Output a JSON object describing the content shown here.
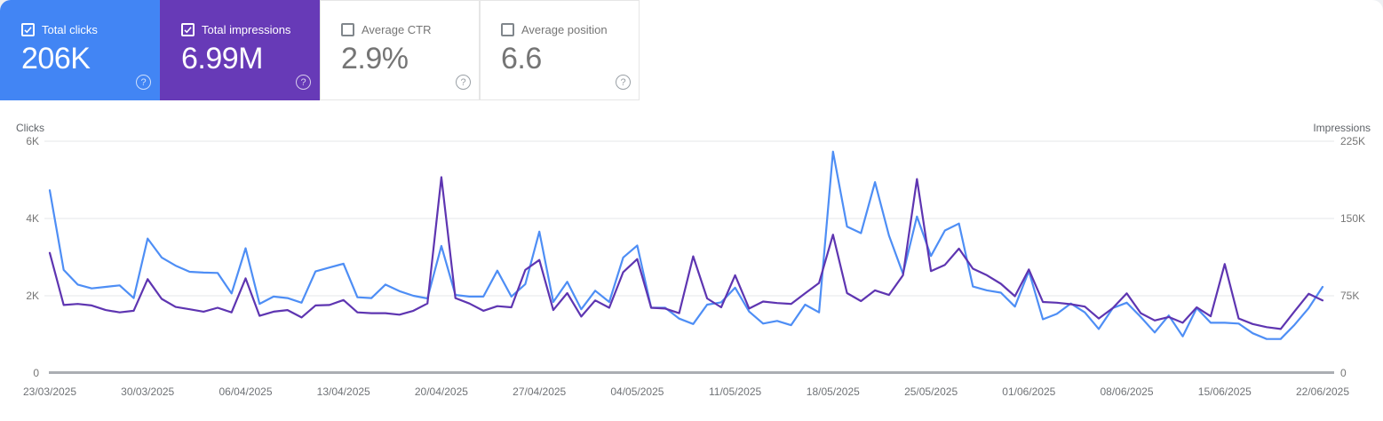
{
  "cards": [
    {
      "id": "total-clicks",
      "label": "Total clicks",
      "value": "206K",
      "checked": true,
      "bg": "#4285f4"
    },
    {
      "id": "total-impressions",
      "label": "Total impressions",
      "value": "6.99M",
      "checked": true,
      "bg": "#673ab7"
    },
    {
      "id": "average-ctr",
      "label": "Average CTR",
      "value": "2.9%",
      "checked": false,
      "bg": "#ffffff"
    },
    {
      "id": "average-position",
      "label": "Average position",
      "value": "6.6",
      "checked": false,
      "bg": "#ffffff"
    }
  ],
  "help_icon_glyph": "?",
  "chart_data": {
    "type": "line",
    "frequency": "daily",
    "x_start_date": "23/03/2025",
    "x_end_date": "22/06/2025",
    "x_tick_labels": [
      "23/03/2025",
      "30/03/2025",
      "06/04/2025",
      "13/04/2025",
      "20/04/2025",
      "27/04/2025",
      "04/05/2025",
      "11/05/2025",
      "18/05/2025",
      "25/05/2025",
      "01/06/2025",
      "08/06/2025",
      "15/06/2025",
      "22/06/2025"
    ],
    "left_axis": {
      "title": "Clicks",
      "ticks": [
        "6K",
        "4K",
        "2K",
        "0"
      ],
      "max": 6000,
      "min": 0
    },
    "right_axis": {
      "title": "Impressions",
      "ticks": [
        "225K",
        "150K",
        "75K",
        "0"
      ],
      "max": 225000,
      "min": 0
    },
    "grid": true,
    "legend": "none",
    "series": [
      {
        "name": "Clicks",
        "axis": "left",
        "color": "#4e8ef5",
        "values": [
          4730,
          2670,
          2290,
          2190,
          2230,
          2270,
          1940,
          3480,
          2990,
          2780,
          2620,
          2600,
          2590,
          2060,
          3230,
          1790,
          1980,
          1940,
          1820,
          2630,
          2730,
          2830,
          1960,
          1940,
          2290,
          2120,
          2000,
          1930,
          3290,
          2020,
          1980,
          1980,
          2650,
          1980,
          2300,
          3660,
          1840,
          2360,
          1650,
          2130,
          1840,
          2990,
          3300,
          1690,
          1690,
          1410,
          1270,
          1770,
          1830,
          2210,
          1590,
          1280,
          1350,
          1240,
          1770,
          1570,
          5730,
          3790,
          3620,
          4940,
          3560,
          2570,
          4050,
          3030,
          3690,
          3870,
          2240,
          2140,
          2080,
          1720,
          2640,
          1390,
          1530,
          1800,
          1570,
          1140,
          1680,
          1820,
          1450,
          1050,
          1490,
          950,
          1680,
          1300,
          1300,
          1280,
          1030,
          880,
          880,
          1250,
          1680,
          2230
        ]
      },
      {
        "name": "Impressions",
        "axis": "right",
        "color": "#5e35b1",
        "values": [
          116600,
          66000,
          67100,
          65600,
          61100,
          58900,
          60400,
          91100,
          72000,
          64100,
          61900,
          59600,
          63400,
          58900,
          91900,
          55500,
          59600,
          61100,
          54000,
          65600,
          66000,
          70900,
          58900,
          58100,
          58100,
          56600,
          60400,
          67500,
          190100,
          72800,
          67500,
          60400,
          64900,
          63800,
          100100,
          109700,
          61100,
          77600,
          54800,
          70500,
          63400,
          97900,
          110600,
          63400,
          62600,
          58100,
          113300,
          72400,
          63800,
          94900,
          62600,
          69400,
          67900,
          67100,
          77300,
          87400,
          134300,
          77600,
          69800,
          80300,
          75800,
          94900,
          188300,
          99000,
          105000,
          120800,
          101300,
          94900,
          86600,
          74600,
          100500,
          69000,
          68300,
          66800,
          64500,
          52900,
          63000,
          77300,
          58100,
          51000,
          54400,
          48800,
          63800,
          55100,
          105800,
          52900,
          47600,
          44600,
          42800,
          60000,
          76900,
          70500
        ]
      }
    ],
    "colors": {
      "gridline": "#edeff1",
      "axis_line": "#abaeb3",
      "tick_text": "#757575"
    }
  }
}
